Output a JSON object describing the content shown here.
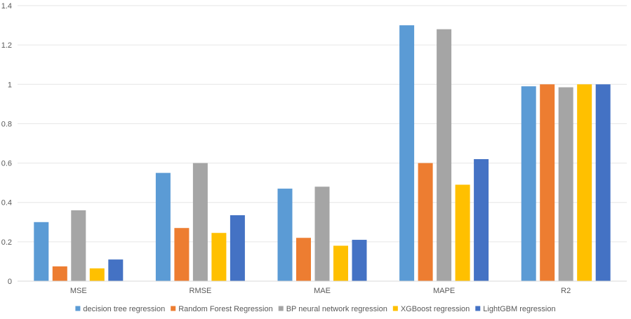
{
  "chart_data": {
    "type": "bar",
    "title": "",
    "xlabel": "",
    "ylabel": "",
    "categories": [
      "MSE",
      "RMSE",
      "MAE",
      "MAPE",
      "R2"
    ],
    "ylim": [
      0,
      1.4
    ],
    "yticks": [
      "0",
      "0.2",
      "0.4",
      "0.6",
      "0.8",
      "1",
      "1.2",
      "1.4"
    ],
    "grid": true,
    "legend_position": "bottom",
    "series": [
      {
        "name": "decision tree regression",
        "color": "#5B9BD5",
        "values": [
          0.3,
          0.55,
          0.47,
          1.3,
          0.99
        ]
      },
      {
        "name": "Random Forest Regression",
        "color": "#ED7D31",
        "values": [
          0.075,
          0.27,
          0.22,
          0.6,
          1.0
        ]
      },
      {
        "name": "BP neural network regression",
        "color": "#A5A5A5",
        "values": [
          0.36,
          0.6,
          0.48,
          1.28,
          0.985
        ]
      },
      {
        "name": "XGBoost regression",
        "color": "#FFC000",
        "values": [
          0.065,
          0.245,
          0.18,
          0.49,
          1.0
        ]
      },
      {
        "name": "LightGBM regression",
        "color": "#4472C4",
        "values": [
          0.11,
          0.335,
          0.21,
          0.62,
          1.0
        ]
      }
    ]
  }
}
